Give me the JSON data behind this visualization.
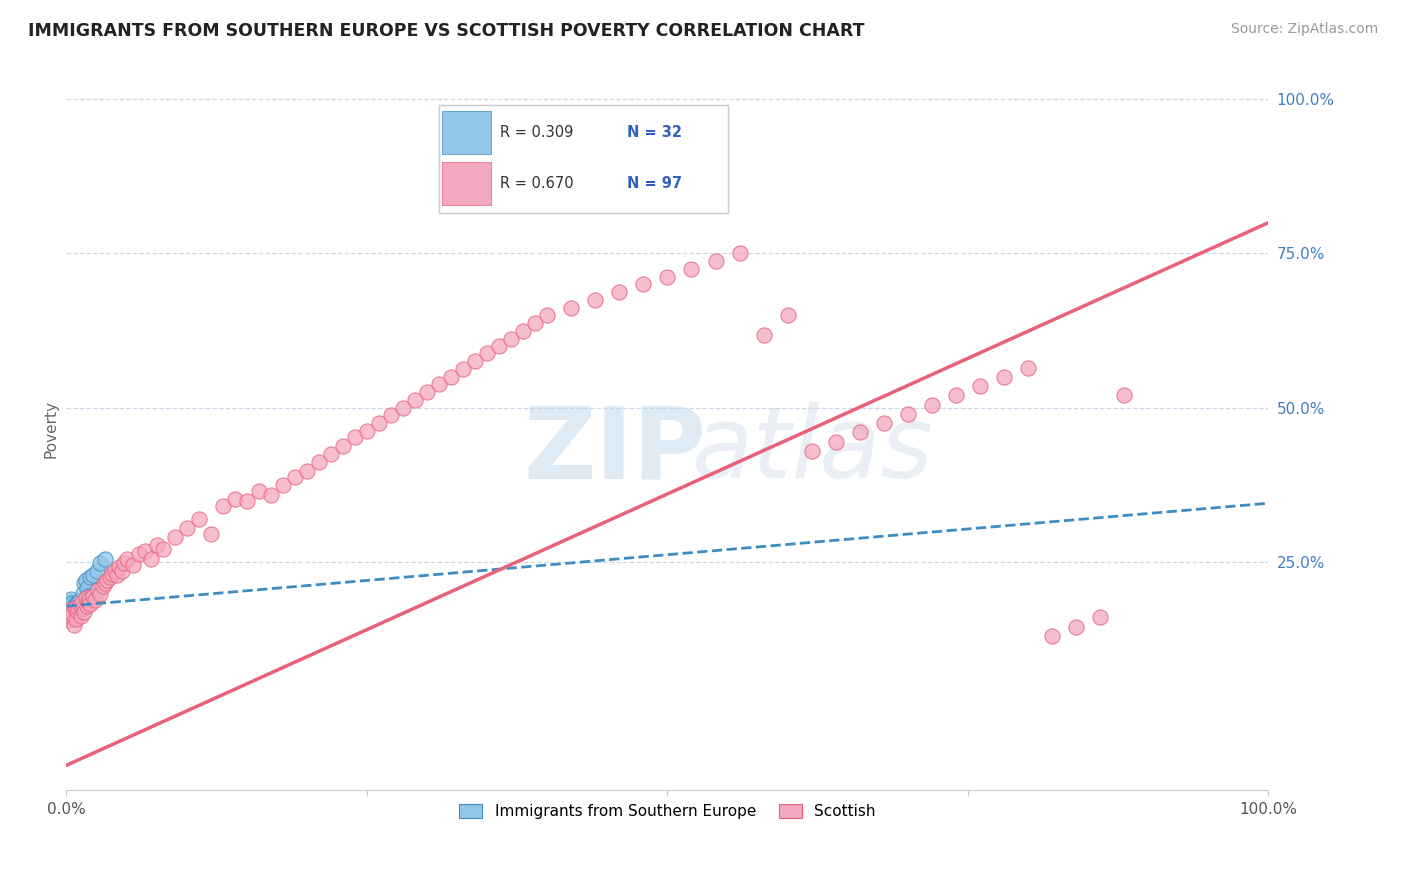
{
  "title": "IMMIGRANTS FROM SOUTHERN EUROPE VS SCOTTISH POVERTY CORRELATION CHART",
  "source": "Source: ZipAtlas.com",
  "ylabel": "Poverty",
  "y_tick_labels_right": [
    "100.0%",
    "75.0%",
    "50.0%",
    "25.0%"
  ],
  "legend_label1_r": "R = 0.309",
  "legend_label1_n": "N = 32",
  "legend_label2_r": "R = 0.670",
  "legend_label2_n": "N = 97",
  "legend_label_bottom1": "Immigrants from Southern Europe",
  "legend_label_bottom2": "Scottish",
  "color_blue": "#93c6e8",
  "color_pink": "#f4a8c0",
  "color_blue_line": "#3d8cc4",
  "color_pink_line": "#e8607a",
  "watermark_zip": "ZIP",
  "watermark_atlas": "atlas",
  "blue_x": [
    0.001,
    0.002,
    0.003,
    0.003,
    0.004,
    0.004,
    0.005,
    0.005,
    0.006,
    0.006,
    0.007,
    0.007,
    0.008,
    0.008,
    0.009,
    0.009,
    0.01,
    0.01,
    0.011,
    0.011,
    0.012,
    0.013,
    0.014,
    0.015,
    0.016,
    0.017,
    0.018,
    0.02,
    0.022,
    0.025,
    0.028,
    0.032
  ],
  "blue_y": [
    0.175,
    0.168,
    0.172,
    0.185,
    0.16,
    0.19,
    0.172,
    0.183,
    0.175,
    0.168,
    0.178,
    0.182,
    0.175,
    0.18,
    0.165,
    0.18,
    0.185,
    0.172,
    0.178,
    0.188,
    0.175,
    0.182,
    0.2,
    0.215,
    0.22,
    0.208,
    0.195,
    0.225,
    0.228,
    0.235,
    0.248,
    0.255
  ],
  "pink_x": [
    0.001,
    0.002,
    0.003,
    0.004,
    0.005,
    0.006,
    0.007,
    0.008,
    0.009,
    0.01,
    0.011,
    0.012,
    0.013,
    0.014,
    0.015,
    0.016,
    0.017,
    0.018,
    0.019,
    0.02,
    0.022,
    0.024,
    0.026,
    0.028,
    0.03,
    0.032,
    0.034,
    0.036,
    0.038,
    0.04,
    0.042,
    0.044,
    0.046,
    0.048,
    0.05,
    0.055,
    0.06,
    0.065,
    0.07,
    0.075,
    0.08,
    0.09,
    0.1,
    0.11,
    0.12,
    0.13,
    0.14,
    0.15,
    0.16,
    0.17,
    0.18,
    0.19,
    0.2,
    0.21,
    0.22,
    0.23,
    0.24,
    0.25,
    0.26,
    0.27,
    0.28,
    0.29,
    0.3,
    0.31,
    0.32,
    0.33,
    0.34,
    0.35,
    0.36,
    0.37,
    0.38,
    0.39,
    0.4,
    0.42,
    0.44,
    0.46,
    0.48,
    0.5,
    0.52,
    0.54,
    0.56,
    0.58,
    0.6,
    0.62,
    0.64,
    0.66,
    0.68,
    0.7,
    0.72,
    0.74,
    0.76,
    0.78,
    0.8,
    0.82,
    0.84,
    0.86,
    0.88
  ],
  "pink_y": [
    0.168,
    0.155,
    0.172,
    0.16,
    0.165,
    0.148,
    0.175,
    0.158,
    0.17,
    0.175,
    0.18,
    0.162,
    0.185,
    0.175,
    0.168,
    0.192,
    0.178,
    0.185,
    0.19,
    0.182,
    0.195,
    0.188,
    0.205,
    0.198,
    0.21,
    0.215,
    0.22,
    0.225,
    0.23,
    0.235,
    0.228,
    0.242,
    0.235,
    0.248,
    0.255,
    0.245,
    0.262,
    0.268,
    0.255,
    0.278,
    0.27,
    0.29,
    0.305,
    0.32,
    0.295,
    0.34,
    0.352,
    0.348,
    0.365,
    0.358,
    0.375,
    0.388,
    0.398,
    0.412,
    0.425,
    0.438,
    0.452,
    0.462,
    0.475,
    0.488,
    0.5,
    0.512,
    0.525,
    0.538,
    0.55,
    0.562,
    0.575,
    0.588,
    0.6,
    0.612,
    0.625,
    0.638,
    0.65,
    0.662,
    0.675,
    0.688,
    0.7,
    0.712,
    0.725,
    0.738,
    0.75,
    0.618,
    0.65,
    0.43,
    0.445,
    0.46,
    0.475,
    0.49,
    0.505,
    0.52,
    0.535,
    0.55,
    0.565,
    0.13,
    0.145,
    0.16,
    0.52
  ],
  "blue_line_x0": 0.0,
  "blue_line_x1": 1.0,
  "blue_line_y0": 0.178,
  "blue_line_y1": 0.345,
  "pink_line_x0": 0.0,
  "pink_line_x1": 1.0,
  "pink_line_y0": -0.08,
  "pink_line_y1": 0.8,
  "xlim": [
    0,
    1.0
  ],
  "ylim": [
    -0.12,
    1.05
  ],
  "yticks": [
    0.25,
    0.5,
    0.75,
    1.0
  ],
  "grid_color": "#c8d8e8",
  "spine_color": "#cccccc"
}
